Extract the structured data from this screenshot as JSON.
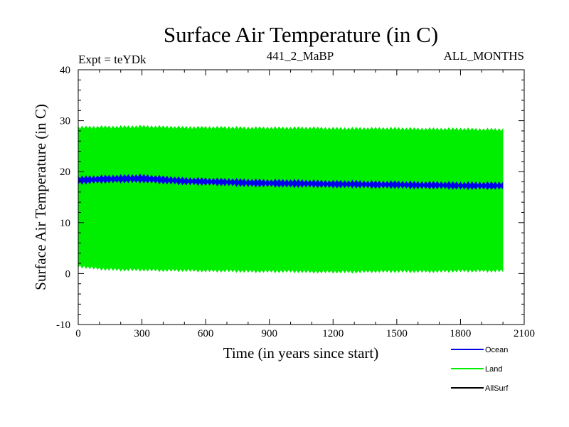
{
  "chart_data": {
    "type": "area",
    "title": "Surface Air Temperature (in C)",
    "subtitle_left": "Expt = teYDk",
    "subtitle_center": "441_2_MaBP",
    "subtitle_right": "ALL_MONTHS",
    "xlabel": "Time (in years since start)",
    "ylabel": "Surface Air Temperature (in C)",
    "xlim": [
      0,
      2100
    ],
    "ylim": [
      -10,
      40
    ],
    "x_ticks": [
      0,
      300,
      600,
      900,
      1200,
      1500,
      1800,
      2100
    ],
    "x_tick_labels": [
      "0",
      "300",
      "600",
      "900",
      "1200",
      "1500",
      "1800",
      "2100"
    ],
    "y_ticks": [
      -10,
      0,
      10,
      20,
      30,
      40
    ],
    "y_tick_labels": [
      "-10",
      "0",
      "10",
      "20",
      "30",
      "40"
    ],
    "x_minor_step": 100,
    "y_minor_step": 2,
    "series": [
      {
        "name": "Land",
        "color": "#00ee00",
        "style": "band",
        "x": [
          0,
          100,
          200,
          300,
          400,
          500,
          600,
          700,
          800,
          900,
          1000,
          1100,
          1200,
          1300,
          1400,
          1500,
          1600,
          1700,
          1800,
          1900,
          2000
        ],
        "lower": [
          1.5,
          1.0,
          0.8,
          0.8,
          0.7,
          0.7,
          0.6,
          0.6,
          0.5,
          0.5,
          0.5,
          0.4,
          0.4,
          0.4,
          0.5,
          0.5,
          0.5,
          0.5,
          0.6,
          0.6,
          0.6
        ],
        "upper": [
          28.6,
          28.7,
          28.7,
          28.8,
          28.7,
          28.6,
          28.6,
          28.6,
          28.5,
          28.5,
          28.5,
          28.5,
          28.4,
          28.4,
          28.4,
          28.4,
          28.3,
          28.3,
          28.3,
          28.2,
          28.2
        ]
      },
      {
        "name": "Ocean",
        "color": "#0000ee",
        "style": "band",
        "x": [
          0,
          100,
          200,
          300,
          400,
          500,
          600,
          700,
          800,
          900,
          1000,
          1100,
          1200,
          1300,
          1400,
          1500,
          1600,
          1700,
          1800,
          1900,
          2000
        ],
        "lower": [
          17.8,
          18.0,
          18.1,
          18.1,
          17.9,
          17.7,
          17.6,
          17.5,
          17.3,
          17.3,
          17.2,
          17.2,
          17.1,
          17.1,
          17.0,
          17.0,
          16.9,
          16.9,
          16.8,
          16.8,
          16.8
        ],
        "upper": [
          18.8,
          19.0,
          19.1,
          19.2,
          18.9,
          18.6,
          18.5,
          18.4,
          18.3,
          18.2,
          18.2,
          18.1,
          18.0,
          18.0,
          17.9,
          17.9,
          17.8,
          17.8,
          17.7,
          17.7,
          17.7
        ]
      },
      {
        "name": "AllSurf",
        "color": "#000000",
        "style": "line",
        "x": [],
        "values": []
      }
    ],
    "legend_order": [
      "Ocean",
      "Land",
      "AllSurf"
    ],
    "legend_position": "bottom-right"
  }
}
